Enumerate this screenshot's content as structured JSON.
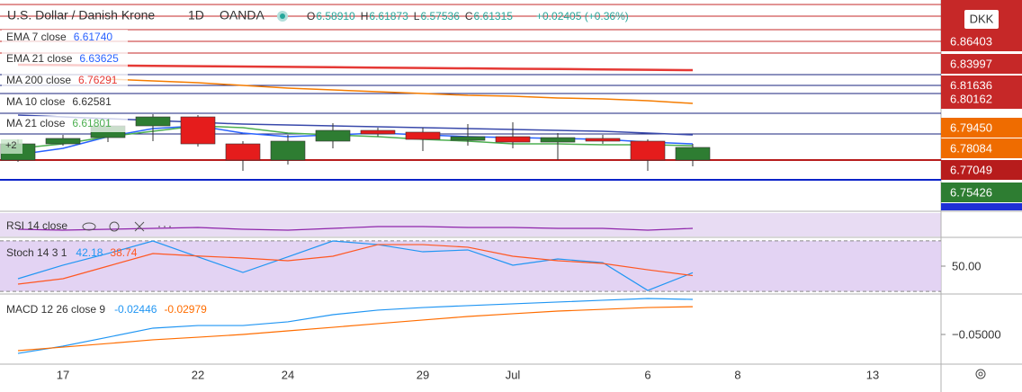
{
  "header": {
    "symbol": "U.S. Dollar / Danish Krone",
    "interval": "1D",
    "source": "OANDA",
    "ohlc": [
      {
        "key": "O",
        "value": "6.58910"
      },
      {
        "key": "H",
        "value": "6.61873"
      },
      {
        "key": "L",
        "value": "6.57536"
      },
      {
        "key": "C",
        "value": "6.61315"
      }
    ],
    "change": "+0.02405 (+0.36%)",
    "currency": "DKK",
    "badge": "+2"
  },
  "price_labels": [
    {
      "label": "6.86403",
      "color": "#c62828"
    },
    {
      "label": "6.83997",
      "color": "#c62828"
    },
    {
      "label": "6.81636",
      "color": "#c62828"
    },
    {
      "label": "6.80162",
      "color": "#c62828"
    },
    {
      "label": "6.79450",
      "color": "#ef6c00"
    },
    {
      "label": "6.78084",
      "color": "#ef6c00"
    },
    {
      "label": "6.77049",
      "color": "#b71c1c"
    },
    {
      "label": "6.75426",
      "color": "#2e7d32"
    }
  ],
  "chart_data": [
    {
      "type": "candlestick",
      "x": [
        0,
        1,
        2,
        3,
        4,
        5,
        6,
        7,
        8,
        9,
        10,
        11,
        12,
        13,
        14,
        15
      ],
      "open": [
        6.7373,
        6.7546,
        6.7613,
        6.7738,
        6.7834,
        6.7546,
        6.7373,
        6.7575,
        6.769,
        6.7671,
        6.7584,
        6.7623,
        6.7565,
        6.7604,
        6.7575,
        6.7373
      ],
      "high": [
        6.7594,
        6.7642,
        6.7805,
        6.7863,
        6.7853,
        6.7575,
        6.7642,
        6.7767,
        6.7719,
        6.7719,
        6.7757,
        6.7776,
        6.7661,
        6.7642,
        6.7594,
        6.7546
      ],
      "low": [
        6.7354,
        6.7527,
        6.7565,
        6.7575,
        6.7517,
        6.7258,
        6.7325,
        6.7498,
        6.7623,
        6.7469,
        6.7527,
        6.7498,
        6.7373,
        6.7546,
        6.7258,
        6.7306
      ],
      "close": [
        6.7546,
        6.7604,
        6.7738,
        6.7834,
        6.7546,
        6.7373,
        6.7575,
        6.769,
        6.7652,
        6.7594,
        6.7623,
        6.7565,
        6.7613,
        6.7575,
        6.7373,
        6.7508
      ],
      "up_color": "#2e7d32",
      "down_color": "#e51c1c",
      "xlim": [
        -0.4,
        20.52
      ],
      "ylim": [
        6.6855,
        6.9082
      ],
      "xticks": [
        {
          "value": 1,
          "label": "17"
        },
        {
          "value": 4,
          "label": "22"
        },
        {
          "value": 6,
          "label": "24"
        },
        {
          "value": 9,
          "label": "29"
        },
        {
          "value": 11,
          "label": "Jul"
        },
        {
          "value": 14,
          "label": "6"
        },
        {
          "value": 16,
          "label": "8"
        },
        {
          "value": 19,
          "label": "13"
        }
      ],
      "series": [
        {
          "name": "EMA 7 close",
          "legend_value": "6.61740",
          "label_color": "#2962ff",
          "color": "#2962ff",
          "values": [
            6.7431,
            6.7498,
            6.7623,
            6.7709,
            6.7738,
            6.7661,
            6.7623,
            6.7642,
            6.7661,
            6.7642,
            6.7623,
            6.7613,
            6.7604,
            6.7594,
            6.7565,
            6.7546
          ]
        },
        {
          "name": "EMA 21 close",
          "legend_value": "6.63625",
          "label_color": "#2962ff",
          "color": "#f57c00",
          "values": [
            null,
            null,
            6.8237,
            6.8218,
            6.8199,
            6.817,
            6.8141,
            6.8122,
            6.8103,
            6.8084,
            6.8064,
            6.8055,
            6.8036,
            6.8026,
            6.8007,
            6.7978
          ]
        },
        {
          "name": "MA 200 close",
          "legend_value": "6.76291",
          "label_color": "#e53935",
          "color": "#e53935",
          "values": [
            6.8391,
            6.8387,
            6.8383,
            6.8379,
            6.8375,
            6.8372,
            6.8368,
            6.8364,
            6.836,
            6.8356,
            6.8352,
            6.8348,
            6.8345,
            6.8341,
            6.8337,
            6.8333
          ]
        },
        {
          "name": "MA 10 close",
          "legend_value": "6.62581",
          "label_color": "#333333",
          "color": "#3949ab",
          "values": [
            6.7853,
            6.7834,
            6.7815,
            6.7796,
            6.7776,
            6.7757,
            6.7748,
            6.7738,
            6.7728,
            6.7719,
            6.7709,
            6.77,
            6.769,
            6.768,
            6.7661,
            6.7642
          ]
        },
        {
          "name": "MA 21 close",
          "legend_value": "6.61801",
          "label_color": "#4caf50",
          "color": "#4caf50",
          "values": [
            6.7498,
            6.7546,
            6.7623,
            6.768,
            6.7738,
            6.7719,
            6.7661,
            6.7642,
            6.7623,
            6.7594,
            6.7575,
            6.7546,
            6.7546,
            6.7536,
            6.7536,
            6.7527
          ]
        }
      ]
    },
    {
      "type": "line",
      "title": "RSI 14 close",
      "ylim": [
        30,
        70
      ],
      "series": [
        {
          "color": "#8e24aa",
          "values": [
            41.2,
            39.6,
            41.2,
            42.8,
            44.4,
            41.2,
            39.6,
            42.8,
            46,
            46,
            44.4,
            44.4,
            42.8,
            42.8,
            39.6,
            42.8
          ]
        }
      ]
    },
    {
      "type": "line",
      "title": "Stoch 14 3 1",
      "ylim": [
        17,
        83
      ],
      "yticks": [
        {
          "value": 50,
          "label": "50.00"
        }
      ],
      "bands": [
        20,
        80
      ],
      "series": [
        {
          "color": "#2196f3",
          "values": [
            35.1,
            51.1,
            65,
            79.8,
            61,
            42.5,
            61,
            79.8,
            75.5,
            67.0,
            69.2,
            51.1,
            58.5,
            54.2,
            21.2,
            42.18
          ]
        },
        {
          "color": "#ff5722",
          "values": [
            28.7,
            35.1,
            50,
            64.9,
            62,
            59.6,
            56.4,
            61.7,
            75.5,
            75.5,
            72.4,
            61.7,
            56.4,
            53.2,
            45.7,
            38.74
          ]
        }
      ]
    },
    {
      "type": "line",
      "title": "MACD 12 26 close 9",
      "ylim": [
        -0.0716,
        -0.0212
      ],
      "yticks": [
        {
          "value": -0.05,
          "label": "−0.05000"
        }
      ],
      "series": [
        {
          "color": "#2196f3",
          "values": [
            -0.0638,
            -0.0585,
            -0.052,
            -0.0454,
            -0.0435,
            -0.0435,
            -0.0408,
            -0.0356,
            -0.0323,
            -0.0304,
            -0.029,
            -0.0277,
            -0.0264,
            -0.0251,
            -0.0238,
            -0.02446
          ]
        },
        {
          "color": "#ff6d00",
          "values": [
            -0.0618,
            -0.0592,
            -0.0566,
            -0.0539,
            -0.052,
            -0.05,
            -0.0474,
            -0.0448,
            -0.0421,
            -0.0395,
            -0.0369,
            -0.0349,
            -0.033,
            -0.0317,
            -0.0304,
            -0.02979
          ]
        }
      ]
    }
  ]
}
